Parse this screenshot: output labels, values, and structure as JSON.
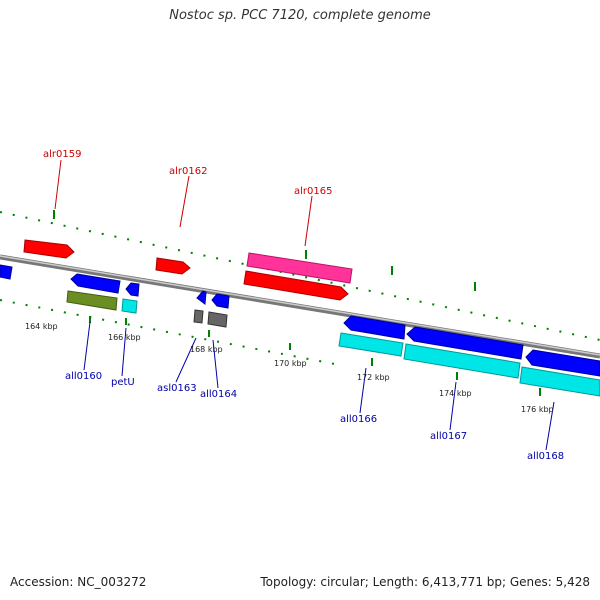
{
  "title": "Nostoc sp. PCC 7120, complete genome",
  "footer": {
    "accession": "Accession: NC_003272",
    "summary": "Topology: circular; Length: 6,413,771 bp; Genes: 5,428"
  },
  "colors": {
    "forward_label": "#cc0000",
    "reverse_label": "#0000aa",
    "backbone": "#888888",
    "tick": "#008000",
    "red": "#ff0000",
    "pink": "#ff3399",
    "blue": "#0000ff",
    "cyan": "#00e5e5",
    "olive": "#6b8e23",
    "gray": "#666666"
  },
  "kbp_ticks": [
    "164 kbp",
    "166 kbp",
    "168 kbp",
    "170 kbp",
    "172 kbp",
    "174 kbp",
    "176 kbp"
  ],
  "forward_genes": [
    "alr0159",
    "alr0162",
    "alr0165"
  ],
  "reverse_genes": [
    "all0160",
    "petU",
    "asl0163",
    "all0164",
    "all0166",
    "all0167",
    "all0168"
  ]
}
